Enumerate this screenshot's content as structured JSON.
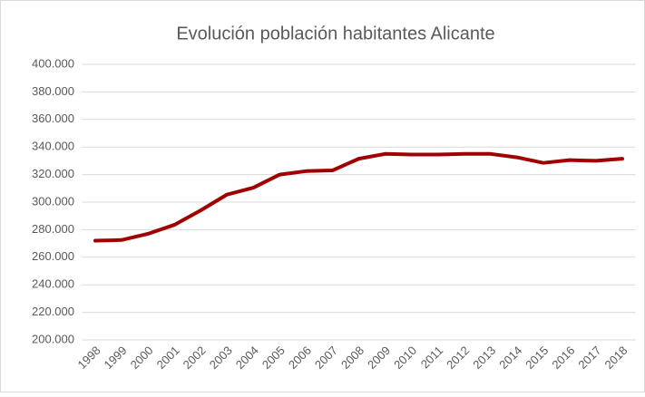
{
  "chart_data": {
    "type": "line",
    "title": "Evolución población habitantes Alicante",
    "categories": [
      "1998",
      "1999",
      "2000",
      "2001",
      "2002",
      "2003",
      "2004",
      "2005",
      "2006",
      "2007",
      "2008",
      "2009",
      "2010",
      "2011",
      "2012",
      "2013",
      "2014",
      "2015",
      "2016",
      "2017",
      "2018"
    ],
    "values": [
      272000,
      272500,
      277000,
      283500,
      294000,
      305500,
      310500,
      320000,
      322500,
      323000,
      331500,
      335000,
      334500,
      334500,
      335000,
      335000,
      332500,
      328500,
      330500,
      330000,
      331500
    ],
    "color": "#a00000",
    "ylim": [
      200000,
      400000
    ],
    "yticks": [
      {
        "value": 200000,
        "label": "200.000"
      },
      {
        "value": 220000,
        "label": "220.000"
      },
      {
        "value": 240000,
        "label": "240.000"
      },
      {
        "value": 260000,
        "label": "260.000"
      },
      {
        "value": 280000,
        "label": "280.000"
      },
      {
        "value": 300000,
        "label": "300.000"
      },
      {
        "value": 320000,
        "label": "320.000"
      },
      {
        "value": 340000,
        "label": "340.000"
      },
      {
        "value": 360000,
        "label": "360.000"
      },
      {
        "value": 380000,
        "label": "380.000"
      },
      {
        "value": 400000,
        "label": "400.000"
      }
    ],
    "grid": true
  }
}
